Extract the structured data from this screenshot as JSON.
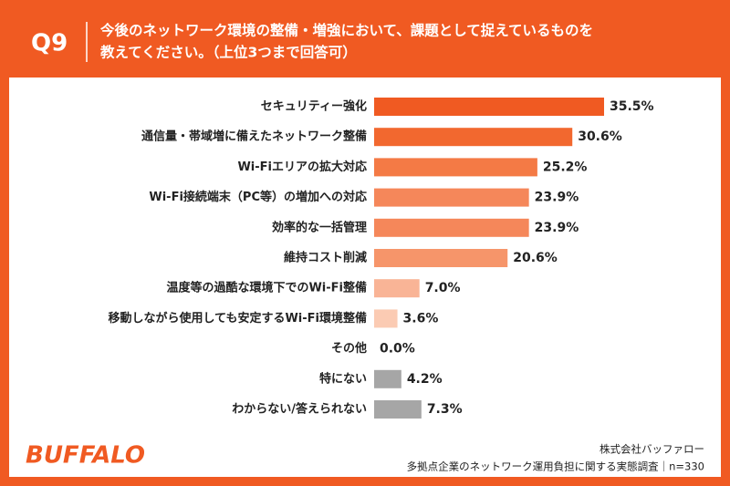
{
  "chart_data": {
    "type": "bar",
    "orientation": "horizontal",
    "question": "Q9",
    "title_lines": [
      "今後のネットワーク環境の整備・増強において、課題として捉えているものを",
      "教えてください。（上位3つまで回答可）"
    ],
    "categories": [
      "セキュリティー強化",
      "通信量・帯域増に備えたネットワーク整備",
      "Wi-Fiエリアの拡大対応",
      "Wi-Fi接続端末（PC等）の増加への対応",
      "効率的な一括管理",
      "維持コスト削減",
      "温度等の過酷な環境下でのWi-Fi整備",
      "移動しながら使用しても安定するWi-Fi環境整備",
      "その他",
      "特にない",
      "わからない/答えられない"
    ],
    "values": [
      35.5,
      30.6,
      25.2,
      23.9,
      23.9,
      20.6,
      7.0,
      3.6,
      0.0,
      4.2,
      7.3
    ],
    "value_labels": [
      "35.5%",
      "30.6%",
      "25.2%",
      "23.9%",
      "23.9%",
      "20.6%",
      "7.0%",
      "3.6%",
      "0.0%",
      "4.2%",
      "7.3%"
    ],
    "colors": [
      "#f05a22",
      "#f2682f",
      "#f47a45",
      "#f5875a",
      "#f5875a",
      "#f6956a",
      "#f9b496",
      "#fbcbb3",
      "#fbcbb3",
      "#a6a6a6",
      "#a6a6a6"
    ],
    "brand": "BUFFALO",
    "source_lines": [
      "株式会社バッファロー",
      "多拠点企業のネットワーク運用負担に関する実態調査｜n=330"
    ]
  }
}
